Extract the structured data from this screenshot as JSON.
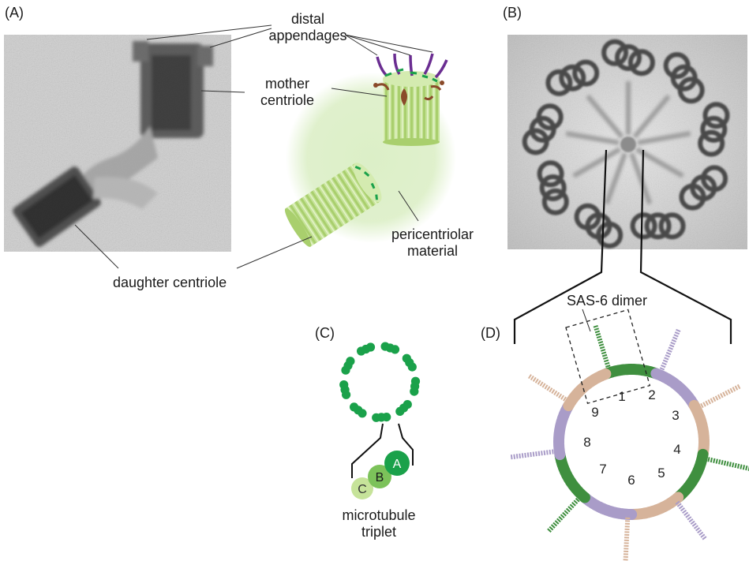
{
  "panels": {
    "a": "(A)",
    "b": "(B)",
    "c": "(C)",
    "d": "(D)"
  },
  "labels": {
    "distal_line1": "distal",
    "distal_line2": "appendages",
    "mother_line1": "mother",
    "mother_line2": "centriole",
    "daughter": "daughter centriole",
    "pcm_line1": "pericentriolar",
    "pcm_line2": "material",
    "sas6": "SAS-6 dimer",
    "mt_line1": "microtubule",
    "mt_line2": "triplet"
  },
  "triplet_letters": [
    "A",
    "B",
    "C"
  ],
  "ring_numbers": [
    "1",
    "2",
    "3",
    "4",
    "5",
    "6",
    "7",
    "8",
    "9"
  ],
  "colors": {
    "tubule_green": "#1aa14a",
    "centriole_light": "#b9db7e",
    "pcm_glow": "#dcefc7",
    "appendage_purple": "#6a2d91",
    "appendage_brown": "#8a4a2a",
    "sas6_green": "#3f8f3f",
    "sas6_lilac": "#a99cc8",
    "sas6_tan": "#d6b39a"
  }
}
